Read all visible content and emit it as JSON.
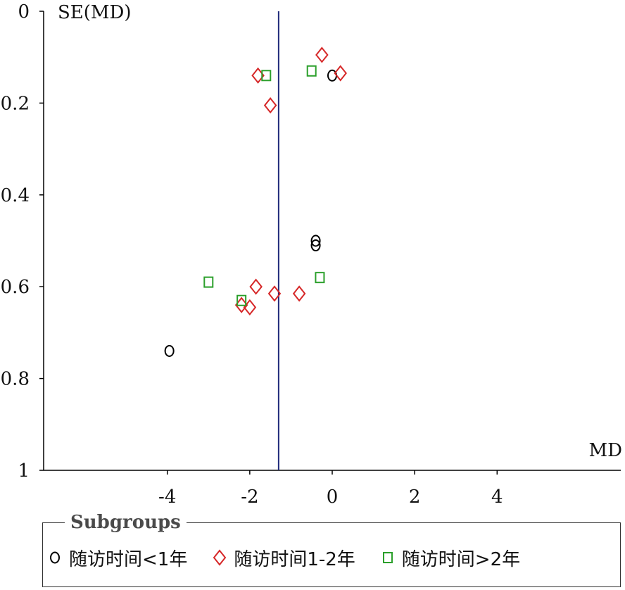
{
  "chart_data": {
    "type": "scatter",
    "title": "",
    "xlabel": "MD",
    "ylabel": "SE(MD)",
    "xlim": [
      -7,
      7
    ],
    "ylim": [
      0,
      1
    ],
    "y_reversed": true,
    "xticks": [
      "-4",
      "-2",
      "0",
      "2",
      "4"
    ],
    "xtick_values": [
      -4,
      -2,
      0,
      2,
      4
    ],
    "yticks": [
      "0",
      "0.2",
      "0.4",
      "0.6",
      "0.8",
      "1"
    ],
    "ytick_values": [
      0,
      0.2,
      0.4,
      0.6,
      0.8,
      1
    ],
    "reference_line_x": -1.3,
    "reference_line_color": "#1f2a7a",
    "legend_title": "Subgroups",
    "legend_position": "bottom",
    "series": [
      {
        "name": "随访时间<1年",
        "marker": "circle",
        "color": "#000000",
        "points": [
          {
            "x": 0.0,
            "y": 0.14
          },
          {
            "x": -0.4,
            "y": 0.5
          },
          {
            "x": -0.4,
            "y": 0.51
          },
          {
            "x": -3.95,
            "y": 0.74
          }
        ]
      },
      {
        "name": "随访时间1-2年",
        "marker": "diamond",
        "color": "#d62728",
        "points": [
          {
            "x": -0.25,
            "y": 0.095
          },
          {
            "x": 0.2,
            "y": 0.135
          },
          {
            "x": -1.8,
            "y": 0.14
          },
          {
            "x": -1.5,
            "y": 0.205
          },
          {
            "x": -1.85,
            "y": 0.6
          },
          {
            "x": -1.4,
            "y": 0.615
          },
          {
            "x": -0.8,
            "y": 0.615
          },
          {
            "x": -2.2,
            "y": 0.64
          },
          {
            "x": -2.0,
            "y": 0.645
          }
        ]
      },
      {
        "name": "随访时间>2年",
        "marker": "square",
        "color": "#2ca02c",
        "points": [
          {
            "x": -0.5,
            "y": 0.13
          },
          {
            "x": -1.6,
            "y": 0.14
          },
          {
            "x": -0.3,
            "y": 0.58
          },
          {
            "x": -3.0,
            "y": 0.59
          },
          {
            "x": -2.2,
            "y": 0.63
          }
        ]
      }
    ]
  }
}
